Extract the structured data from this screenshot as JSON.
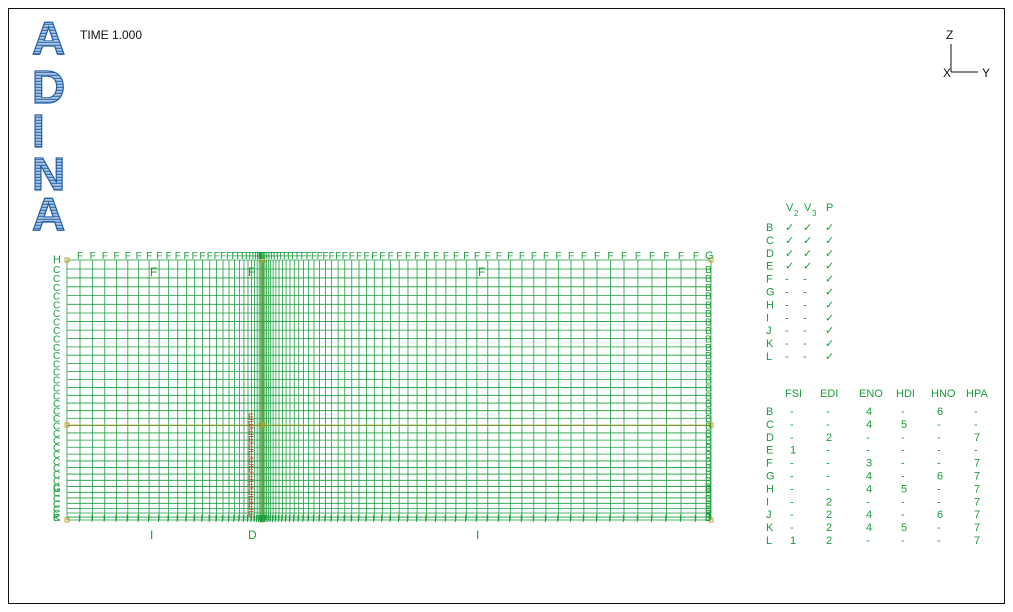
{
  "logo": {
    "letters": [
      "A",
      "D",
      "I",
      "N",
      "A"
    ],
    "color": "#1f5fa8"
  },
  "time_label": "TIME 1.000",
  "axis_triad": {
    "z": "Z",
    "x": "X",
    "y": "Y"
  },
  "colors": {
    "mesh": "#1a9c3c",
    "label": "#1a9c3c",
    "highlight": "#c0392b",
    "node": "#c9a227",
    "text": "#111111"
  },
  "mesh": {
    "edge_labels": {
      "top_left": "H",
      "top_right": "G",
      "bottom_left": "K",
      "bottom_right": "J"
    },
    "top_labels": [
      "F",
      "F",
      "F"
    ],
    "bottom_labels": [
      "I",
      "D",
      "I"
    ],
    "side_char_top": "F",
    "side_char_bottom": "I",
    "side_char_left": "C",
    "side_char_right": "B",
    "special_left_label": "G",
    "special_right_label": "B",
    "highlight_char": "E"
  },
  "fixity_table": {
    "headers": [
      "V2",
      "V3",
      "P"
    ],
    "header_main": [
      "V",
      "V",
      "P"
    ],
    "header_sub": [
      "2",
      "3",
      ""
    ],
    "rows": [
      {
        "label": "B",
        "v2": "✓",
        "v3": "✓",
        "p": "✓"
      },
      {
        "label": "C",
        "v2": "✓",
        "v3": "✓",
        "p": "✓"
      },
      {
        "label": "D",
        "v2": "✓",
        "v3": "✓",
        "p": "✓"
      },
      {
        "label": "E",
        "v2": "✓",
        "v3": "✓",
        "p": "✓"
      },
      {
        "label": "F",
        "v2": "-",
        "v3": "-",
        "p": "✓"
      },
      {
        "label": "G",
        "v2": "-",
        "v3": "-",
        "p": "✓"
      },
      {
        "label": "H",
        "v2": "-",
        "v3": "-",
        "p": "✓"
      },
      {
        "label": "I",
        "v2": "-",
        "v3": "-",
        "p": "✓"
      },
      {
        "label": "J",
        "v2": "-",
        "v3": "-",
        "p": "✓"
      },
      {
        "label": "K",
        "v2": "-",
        "v3": "-",
        "p": "✓"
      },
      {
        "label": "L",
        "v2": "-",
        "v3": "-",
        "p": "✓"
      }
    ]
  },
  "bc_table": {
    "headers": [
      "FSI",
      "EDI",
      "ENO",
      "HDI",
      "HNO",
      "HPA"
    ],
    "rows": [
      {
        "label": "B",
        "vals": [
          "-",
          "-",
          "4",
          "-",
          "6",
          "-"
        ]
      },
      {
        "label": "C",
        "vals": [
          "-",
          "-",
          "4",
          "5",
          "-",
          "-"
        ]
      },
      {
        "label": "D",
        "vals": [
          "-",
          "2",
          "-",
          "-",
          "-",
          "7"
        ]
      },
      {
        "label": "E",
        "vals": [
          "1",
          "-",
          "-",
          "-",
          "-",
          "-"
        ]
      },
      {
        "label": "F",
        "vals": [
          "-",
          "-",
          "3",
          "-",
          "-",
          "7"
        ]
      },
      {
        "label": "G",
        "vals": [
          "-",
          "-",
          "4",
          "-",
          "6",
          "7"
        ]
      },
      {
        "label": "H",
        "vals": [
          "-",
          "-",
          "4",
          "5",
          "-",
          "7"
        ]
      },
      {
        "label": "I",
        "vals": [
          "-",
          "2",
          "-",
          "-",
          "-",
          "7"
        ]
      },
      {
        "label": "J",
        "vals": [
          "-",
          "2",
          "4",
          "-",
          "6",
          "7"
        ]
      },
      {
        "label": "K",
        "vals": [
          "-",
          "2",
          "4",
          "5",
          "-",
          "7"
        ]
      },
      {
        "label": "L",
        "vals": [
          "1",
          "2",
          "-",
          "-",
          "-",
          "7"
        ]
      }
    ]
  }
}
